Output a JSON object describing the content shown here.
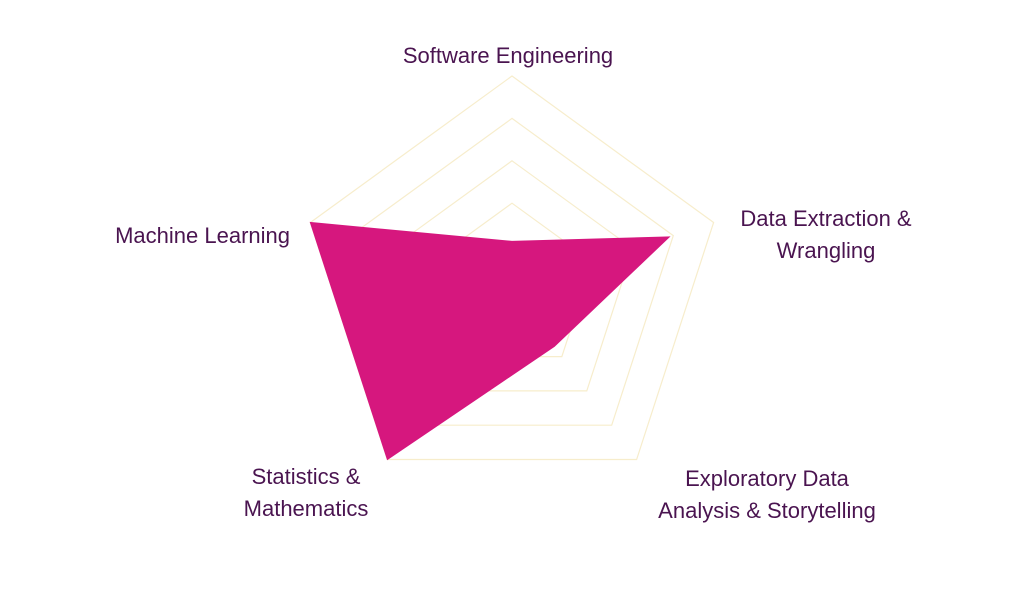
{
  "chart_data": {
    "type": "radar",
    "title": "",
    "axes": [
      {
        "label_lines": [
          "Software Engineering"
        ]
      },
      {
        "label_lines": [
          "Data Extraction &",
          "Wrangling"
        ]
      },
      {
        "label_lines": [
          "Exploratory Data",
          "Analysis & Storytelling"
        ]
      },
      {
        "label_lines": [
          "Statistics &",
          "Mathematics"
        ]
      },
      {
        "label_lines": [
          "Machine Learning"
        ]
      }
    ],
    "range": [
      0,
      5
    ],
    "grid_levels": [
      1,
      2,
      3,
      4,
      5
    ],
    "series": [
      {
        "values": [
          1.1,
          3.9,
          1.7,
          5.0,
          5.0
        ]
      }
    ],
    "colors": {
      "fill": "#d6177e",
      "grid": "#f7edcc",
      "label": "#4a1450"
    },
    "legend": "none",
    "grid": true
  }
}
